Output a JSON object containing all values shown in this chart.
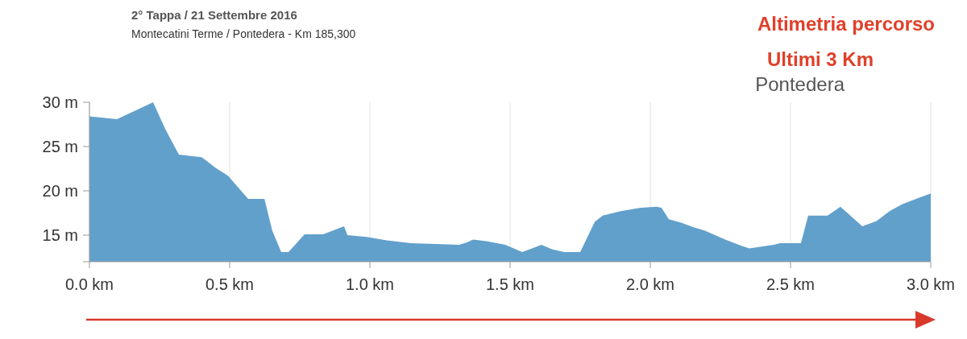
{
  "chart_data": {
    "type": "area",
    "title": "2° Tappa / 21 Settembre 2016",
    "subtitle": "Montecatini Terme / Pontedera - Km 185,300",
    "annotations": [
      "Altimetria percorso",
      "Ultimi 3 Km",
      "Pontedera"
    ],
    "x": [
      0,
      0.098,
      0.227,
      0.27,
      0.319,
      0.4,
      0.45,
      0.494,
      0.566,
      0.624,
      0.652,
      0.684,
      0.71,
      0.767,
      0.833,
      0.908,
      0.92,
      0.989,
      1.06,
      1.147,
      1.233,
      1.319,
      1.348,
      1.368,
      1.42,
      1.483,
      1.543,
      1.578,
      1.612,
      1.649,
      1.693,
      1.75,
      1.802,
      1.83,
      1.894,
      1.966,
      2.023,
      2.04,
      2.066,
      2.11,
      2.152,
      2.195,
      2.267,
      2.325,
      2.353,
      2.44,
      2.463,
      2.537,
      2.563,
      2.632,
      2.678,
      2.756,
      2.807,
      2.853,
      2.899,
      2.957,
      3.0
    ],
    "series": [
      {
        "color": "#62a0cc",
        "values": [
          28.4,
          28.1,
          30.0,
          27.0,
          24.1,
          23.8,
          22.6,
          21.7,
          19.1,
          19.1,
          15.5,
          13.1,
          13.1,
          15.1,
          15.1,
          16.0,
          15.0,
          14.8,
          14.4,
          14.1,
          14.0,
          13.9,
          14.2,
          14.5,
          14.3,
          13.9,
          13.1,
          13.5,
          13.9,
          13.4,
          13.1,
          13.1,
          16.5,
          17.2,
          17.7,
          18.1,
          18.2,
          18.1,
          16.8,
          16.4,
          15.9,
          15.5,
          14.5,
          13.8,
          13.5,
          13.9,
          14.1,
          14.1,
          17.2,
          17.2,
          18.2,
          16.0,
          16.6,
          17.7,
          18.5,
          19.2,
          19.7
        ]
      }
    ],
    "xlim": [
      0,
      3.0
    ],
    "xticks": [
      {
        "value": 0,
        "label": "0.0 km"
      },
      {
        "value": 0.5,
        "label": "0.5 km"
      },
      {
        "value": 1.0,
        "label": "1.0 km"
      },
      {
        "value": 1.5,
        "label": "1.5 km"
      },
      {
        "value": 2.0,
        "label": "2.0 km"
      },
      {
        "value": 2.5,
        "label": "2.5 km"
      },
      {
        "value": 3.0,
        "label": "3.0 km"
      }
    ],
    "ylim": [
      12,
      30
    ],
    "yticks": [
      {
        "value": 15,
        "label": "15 m"
      },
      {
        "value": 20,
        "label": "20 m"
      },
      {
        "value": 25,
        "label": "25 m"
      },
      {
        "value": 30,
        "label": "30 m"
      }
    ],
    "grid": "x"
  }
}
